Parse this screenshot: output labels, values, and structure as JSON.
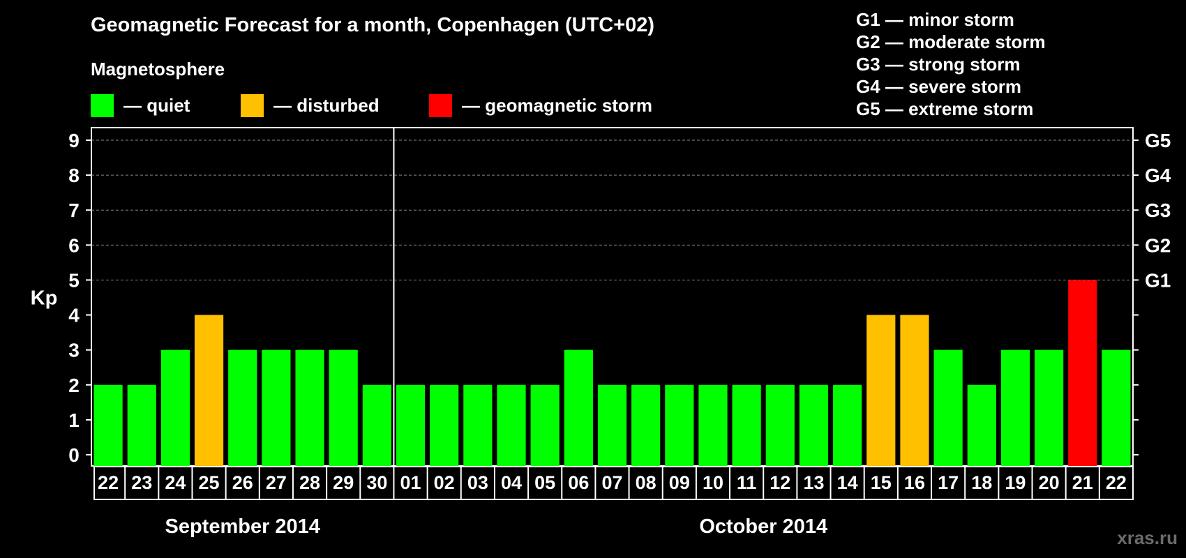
{
  "title": "Geomagnetic Forecast for a month, Copenhagen (UTC+02)",
  "subtitle": "Magnetosphere",
  "legend": [
    {
      "label": "— quiet",
      "color": "#00ff00"
    },
    {
      "label": "— disturbed",
      "color": "#ffc000"
    },
    {
      "label": "— geomagnetic storm",
      "color": "#ff0000"
    }
  ],
  "g_legend": [
    "G1 — minor storm",
    "G2 — moderate storm",
    "G3 — strong storm",
    "G4 — severe storm",
    "G5 — extreme storm"
  ],
  "watermark": "xras.ru",
  "chart_data": {
    "type": "bar",
    "ylabel": "Kp",
    "ylim": [
      0,
      9
    ],
    "yticks": [
      "0",
      "1",
      "2",
      "3",
      "4",
      "5",
      "6",
      "7",
      "8",
      "9"
    ],
    "right_ticks": [
      {
        "value": 5,
        "label": "G1"
      },
      {
        "value": 6,
        "label": "G2"
      },
      {
        "value": 7,
        "label": "G3"
      },
      {
        "value": 8,
        "label": "G4"
      },
      {
        "value": 9,
        "label": "G5"
      }
    ],
    "categories": [
      "22",
      "23",
      "24",
      "25",
      "26",
      "27",
      "28",
      "29",
      "30",
      "01",
      "02",
      "03",
      "04",
      "05",
      "06",
      "07",
      "08",
      "09",
      "10",
      "11",
      "12",
      "13",
      "14",
      "15",
      "16",
      "17",
      "18",
      "19",
      "20",
      "21",
      "22"
    ],
    "values": [
      2,
      2,
      3,
      4,
      3,
      3,
      3,
      3,
      2,
      2,
      2,
      2,
      2,
      2,
      3,
      2,
      2,
      2,
      2,
      2,
      2,
      2,
      2,
      4,
      4,
      3,
      2,
      3,
      3,
      5,
      3
    ],
    "months": [
      {
        "label": "September 2014",
        "start": 0,
        "end": 8
      },
      {
        "label": "October 2014",
        "start": 9,
        "end": 30
      }
    ],
    "color_rule": {
      "quiet_max": 3,
      "disturbed_max": 4
    },
    "colors": {
      "quiet": "#00ff00",
      "disturbed": "#ffc000",
      "storm": "#ff0000"
    }
  }
}
